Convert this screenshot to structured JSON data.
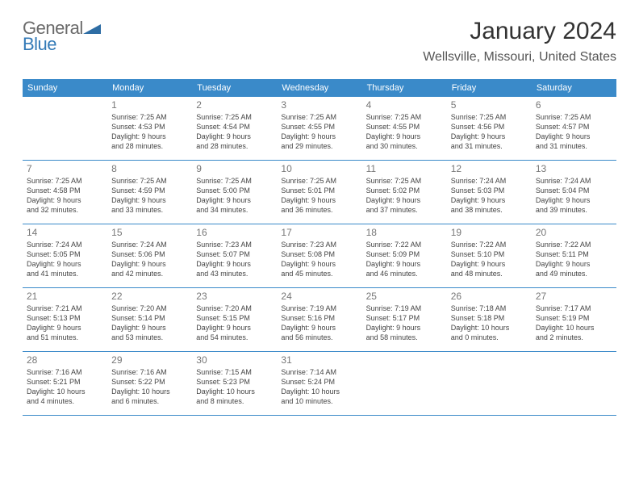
{
  "logo": {
    "word1": "General",
    "word2": "Blue",
    "text_color1": "#6a6a6a",
    "text_color2": "#337ab7",
    "shape_color": "#2e6da4"
  },
  "title": "January 2024",
  "location": "Wellsville, Missouri, United States",
  "header_bg": "#3a8ac9",
  "day_headers": [
    "Sunday",
    "Monday",
    "Tuesday",
    "Wednesday",
    "Thursday",
    "Friday",
    "Saturday"
  ],
  "weeks": [
    [
      {
        "num": "",
        "lines": []
      },
      {
        "num": "1",
        "lines": [
          "Sunrise: 7:25 AM",
          "Sunset: 4:53 PM",
          "Daylight: 9 hours",
          "and 28 minutes."
        ]
      },
      {
        "num": "2",
        "lines": [
          "Sunrise: 7:25 AM",
          "Sunset: 4:54 PM",
          "Daylight: 9 hours",
          "and 28 minutes."
        ]
      },
      {
        "num": "3",
        "lines": [
          "Sunrise: 7:25 AM",
          "Sunset: 4:55 PM",
          "Daylight: 9 hours",
          "and 29 minutes."
        ]
      },
      {
        "num": "4",
        "lines": [
          "Sunrise: 7:25 AM",
          "Sunset: 4:55 PM",
          "Daylight: 9 hours",
          "and 30 minutes."
        ]
      },
      {
        "num": "5",
        "lines": [
          "Sunrise: 7:25 AM",
          "Sunset: 4:56 PM",
          "Daylight: 9 hours",
          "and 31 minutes."
        ]
      },
      {
        "num": "6",
        "lines": [
          "Sunrise: 7:25 AM",
          "Sunset: 4:57 PM",
          "Daylight: 9 hours",
          "and 31 minutes."
        ]
      }
    ],
    [
      {
        "num": "7",
        "lines": [
          "Sunrise: 7:25 AM",
          "Sunset: 4:58 PM",
          "Daylight: 9 hours",
          "and 32 minutes."
        ]
      },
      {
        "num": "8",
        "lines": [
          "Sunrise: 7:25 AM",
          "Sunset: 4:59 PM",
          "Daylight: 9 hours",
          "and 33 minutes."
        ]
      },
      {
        "num": "9",
        "lines": [
          "Sunrise: 7:25 AM",
          "Sunset: 5:00 PM",
          "Daylight: 9 hours",
          "and 34 minutes."
        ]
      },
      {
        "num": "10",
        "lines": [
          "Sunrise: 7:25 AM",
          "Sunset: 5:01 PM",
          "Daylight: 9 hours",
          "and 36 minutes."
        ]
      },
      {
        "num": "11",
        "lines": [
          "Sunrise: 7:25 AM",
          "Sunset: 5:02 PM",
          "Daylight: 9 hours",
          "and 37 minutes."
        ]
      },
      {
        "num": "12",
        "lines": [
          "Sunrise: 7:24 AM",
          "Sunset: 5:03 PM",
          "Daylight: 9 hours",
          "and 38 minutes."
        ]
      },
      {
        "num": "13",
        "lines": [
          "Sunrise: 7:24 AM",
          "Sunset: 5:04 PM",
          "Daylight: 9 hours",
          "and 39 minutes."
        ]
      }
    ],
    [
      {
        "num": "14",
        "lines": [
          "Sunrise: 7:24 AM",
          "Sunset: 5:05 PM",
          "Daylight: 9 hours",
          "and 41 minutes."
        ]
      },
      {
        "num": "15",
        "lines": [
          "Sunrise: 7:24 AM",
          "Sunset: 5:06 PM",
          "Daylight: 9 hours",
          "and 42 minutes."
        ]
      },
      {
        "num": "16",
        "lines": [
          "Sunrise: 7:23 AM",
          "Sunset: 5:07 PM",
          "Daylight: 9 hours",
          "and 43 minutes."
        ]
      },
      {
        "num": "17",
        "lines": [
          "Sunrise: 7:23 AM",
          "Sunset: 5:08 PM",
          "Daylight: 9 hours",
          "and 45 minutes."
        ]
      },
      {
        "num": "18",
        "lines": [
          "Sunrise: 7:22 AM",
          "Sunset: 5:09 PM",
          "Daylight: 9 hours",
          "and 46 minutes."
        ]
      },
      {
        "num": "19",
        "lines": [
          "Sunrise: 7:22 AM",
          "Sunset: 5:10 PM",
          "Daylight: 9 hours",
          "and 48 minutes."
        ]
      },
      {
        "num": "20",
        "lines": [
          "Sunrise: 7:22 AM",
          "Sunset: 5:11 PM",
          "Daylight: 9 hours",
          "and 49 minutes."
        ]
      }
    ],
    [
      {
        "num": "21",
        "lines": [
          "Sunrise: 7:21 AM",
          "Sunset: 5:13 PM",
          "Daylight: 9 hours",
          "and 51 minutes."
        ]
      },
      {
        "num": "22",
        "lines": [
          "Sunrise: 7:20 AM",
          "Sunset: 5:14 PM",
          "Daylight: 9 hours",
          "and 53 minutes."
        ]
      },
      {
        "num": "23",
        "lines": [
          "Sunrise: 7:20 AM",
          "Sunset: 5:15 PM",
          "Daylight: 9 hours",
          "and 54 minutes."
        ]
      },
      {
        "num": "24",
        "lines": [
          "Sunrise: 7:19 AM",
          "Sunset: 5:16 PM",
          "Daylight: 9 hours",
          "and 56 minutes."
        ]
      },
      {
        "num": "25",
        "lines": [
          "Sunrise: 7:19 AM",
          "Sunset: 5:17 PM",
          "Daylight: 9 hours",
          "and 58 minutes."
        ]
      },
      {
        "num": "26",
        "lines": [
          "Sunrise: 7:18 AM",
          "Sunset: 5:18 PM",
          "Daylight: 10 hours",
          "and 0 minutes."
        ]
      },
      {
        "num": "27",
        "lines": [
          "Sunrise: 7:17 AM",
          "Sunset: 5:19 PM",
          "Daylight: 10 hours",
          "and 2 minutes."
        ]
      }
    ],
    [
      {
        "num": "28",
        "lines": [
          "Sunrise: 7:16 AM",
          "Sunset: 5:21 PM",
          "Daylight: 10 hours",
          "and 4 minutes."
        ]
      },
      {
        "num": "29",
        "lines": [
          "Sunrise: 7:16 AM",
          "Sunset: 5:22 PM",
          "Daylight: 10 hours",
          "and 6 minutes."
        ]
      },
      {
        "num": "30",
        "lines": [
          "Sunrise: 7:15 AM",
          "Sunset: 5:23 PM",
          "Daylight: 10 hours",
          "and 8 minutes."
        ]
      },
      {
        "num": "31",
        "lines": [
          "Sunrise: 7:14 AM",
          "Sunset: 5:24 PM",
          "Daylight: 10 hours",
          "and 10 minutes."
        ]
      },
      {
        "num": "",
        "lines": []
      },
      {
        "num": "",
        "lines": []
      },
      {
        "num": "",
        "lines": []
      }
    ]
  ]
}
